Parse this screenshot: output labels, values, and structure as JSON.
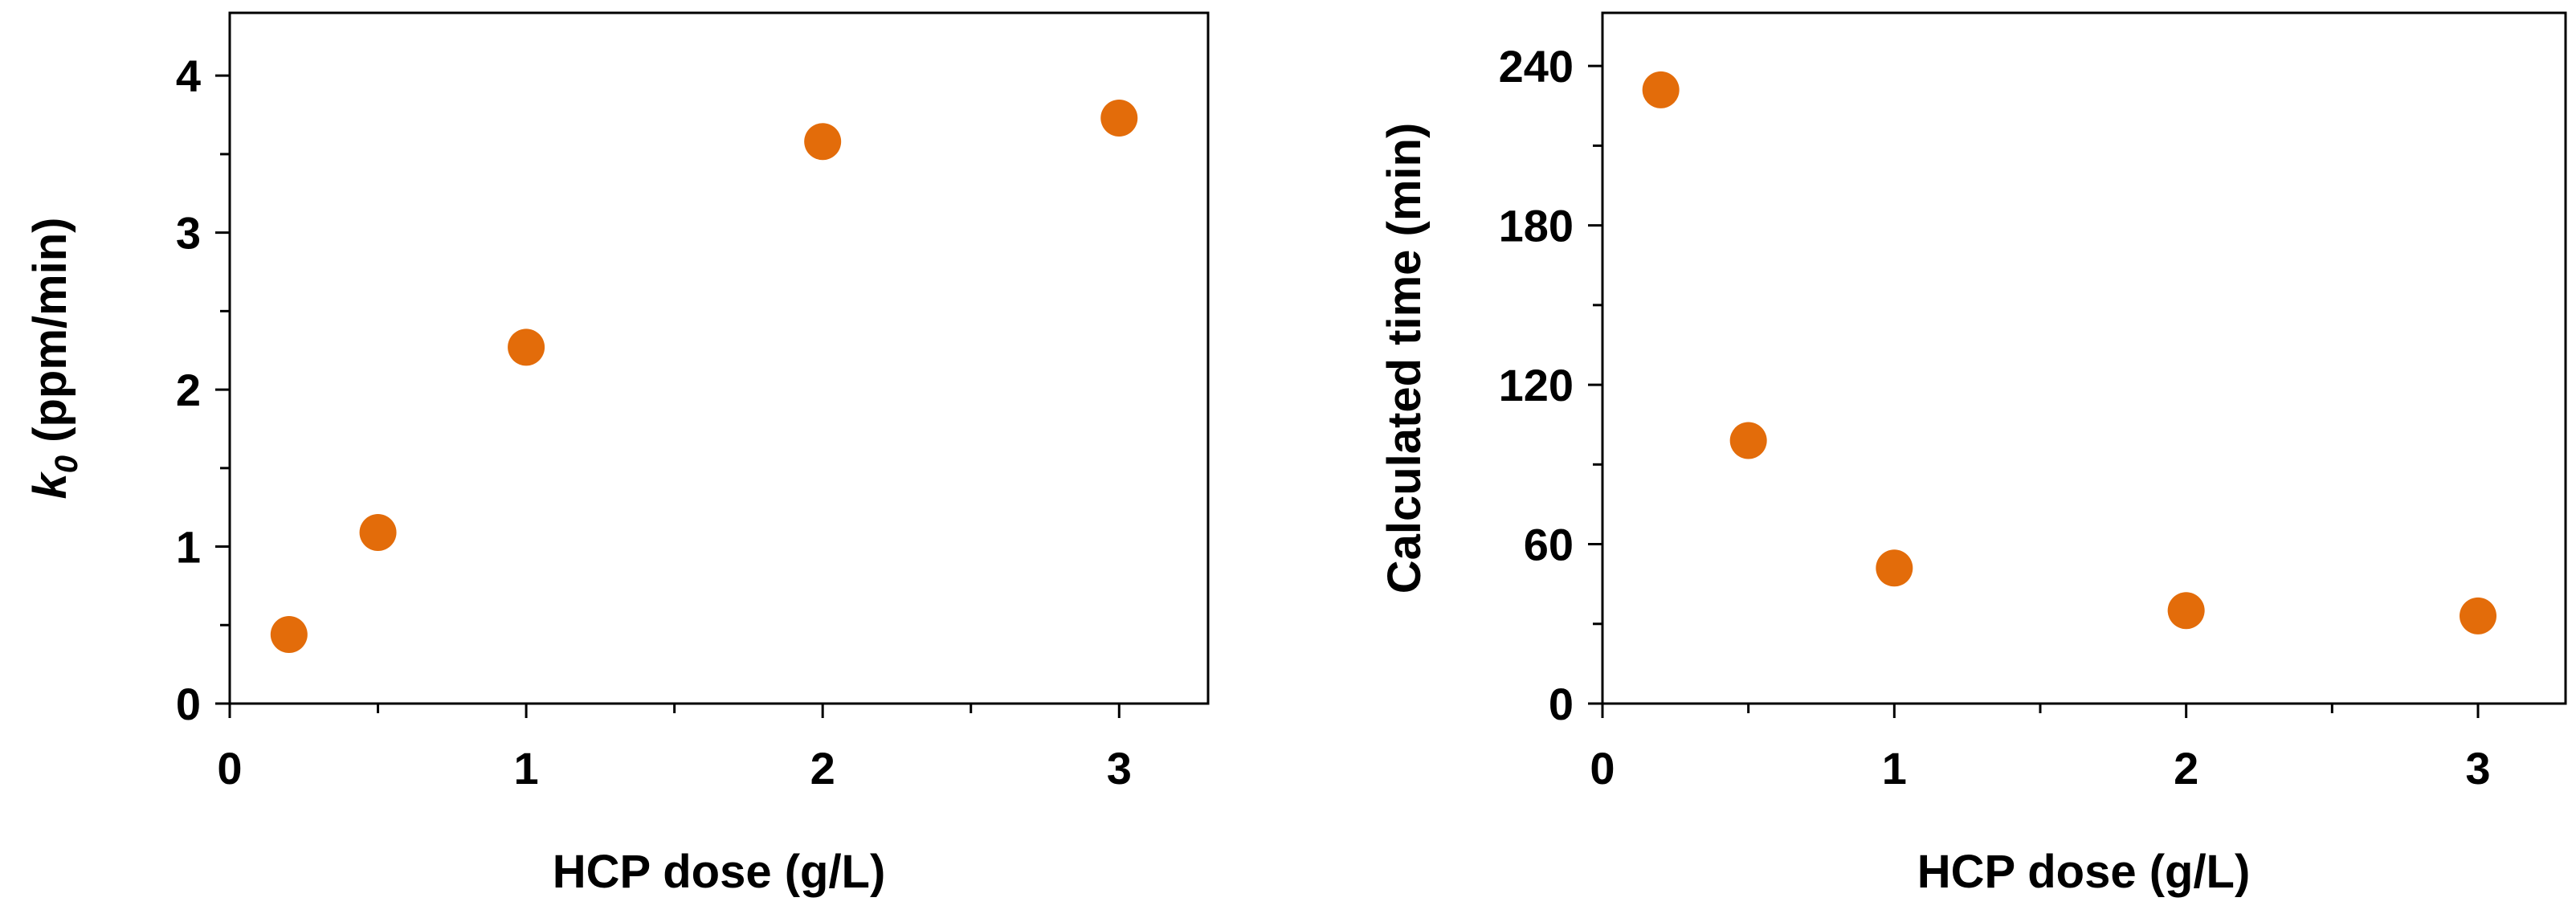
{
  "chart_data": [
    {
      "type": "scatter",
      "title": "",
      "xlabel": "HCP dose (g/L)",
      "ylabel_main": "k",
      "ylabel_sub": "0",
      "ylabel_rest": " (ppm/min)",
      "xlim": [
        0,
        3.3
      ],
      "ylim": [
        0,
        4.4
      ],
      "x_ticks": [
        "0",
        "1",
        "2",
        "3"
      ],
      "y_ticks": [
        "0",
        "1",
        "2",
        "3",
        "4"
      ],
      "grid": false,
      "marker_color": "#E36C0A",
      "points": [
        {
          "x": 0.2,
          "y": 0.44
        },
        {
          "x": 0.5,
          "y": 1.09
        },
        {
          "x": 1.0,
          "y": 2.27
        },
        {
          "x": 2.0,
          "y": 3.58
        },
        {
          "x": 3.0,
          "y": 3.73
        }
      ]
    },
    {
      "type": "scatter",
      "title": "",
      "xlabel": "HCP dose (g/L)",
      "ylabel": "Calculated time (min)",
      "xlim": [
        0,
        3.3
      ],
      "ylim": [
        0,
        260
      ],
      "x_ticks": [
        "0",
        "1",
        "2",
        "3"
      ],
      "y_ticks": [
        "0",
        "60",
        "120",
        "180",
        "240"
      ],
      "grid": false,
      "marker_color": "#E36C0A",
      "points": [
        {
          "x": 0.2,
          "y": 231
        },
        {
          "x": 0.5,
          "y": 99
        },
        {
          "x": 1.0,
          "y": 51
        },
        {
          "x": 2.0,
          "y": 35
        },
        {
          "x": 3.0,
          "y": 33
        }
      ]
    }
  ]
}
